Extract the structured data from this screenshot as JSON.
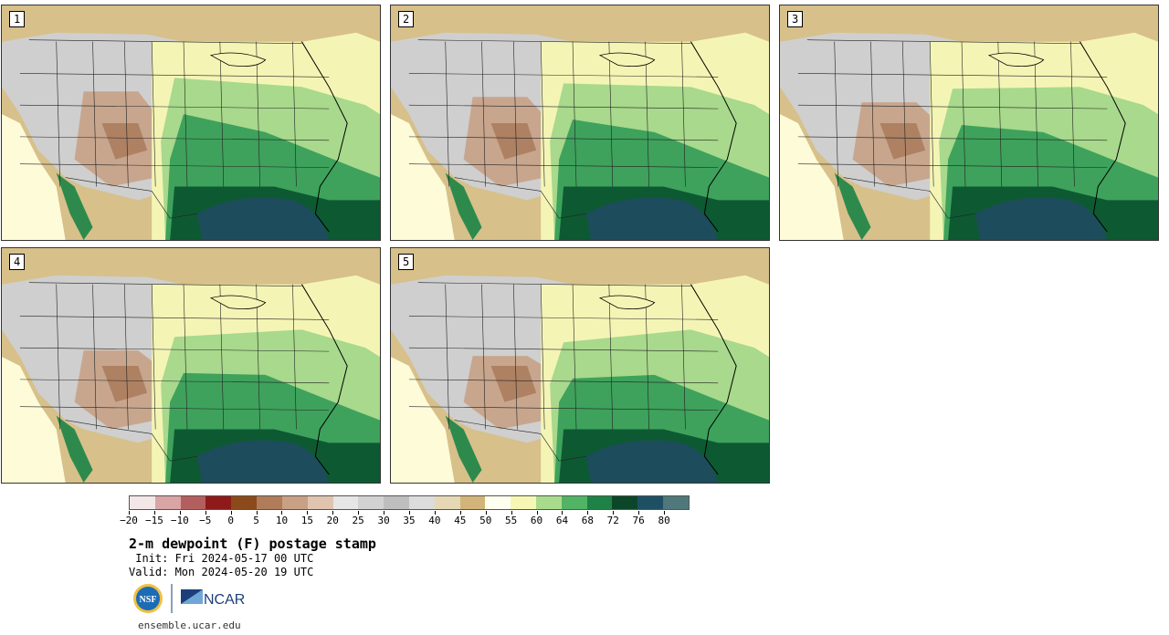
{
  "panels": [
    {
      "label": "1"
    },
    {
      "label": "2"
    },
    {
      "label": "3"
    },
    {
      "label": "4"
    },
    {
      "label": "5"
    }
  ],
  "colorbar": {
    "colors": [
      "#f3e6e6",
      "#d8a4a4",
      "#b45f5f",
      "#8e1a1a",
      "#8c4a1a",
      "#b07c5a",
      "#c8a084",
      "#e0c4b0",
      "#e6e6e6",
      "#d2d2d2",
      "#bebebe",
      "#dcdcdc",
      "#e6d8b4",
      "#d2b478",
      "#fffff0",
      "#f7f7b4",
      "#a8dc8c",
      "#50b464",
      "#1e8246",
      "#0c4628",
      "#1e5064",
      "#50787a"
    ],
    "ticks": [
      "−20",
      "−15",
      "−10",
      "−5",
      "0",
      "5",
      "10",
      "15",
      "20",
      "25",
      "30",
      "35",
      "40",
      "45",
      "50",
      "55",
      "60",
      "64",
      "68",
      "72",
      "76",
      "80"
    ]
  },
  "title": "2-m dewpoint (F) postage stamp",
  "init": " Init: Fri 2024-05-17 00 UTC",
  "valid": "Valid: Mon 2024-05-20 19 UTC",
  "logos": {
    "nsf": "NSF",
    "ncar": "NCAR"
  },
  "site": "ensemble.ucar.edu"
}
